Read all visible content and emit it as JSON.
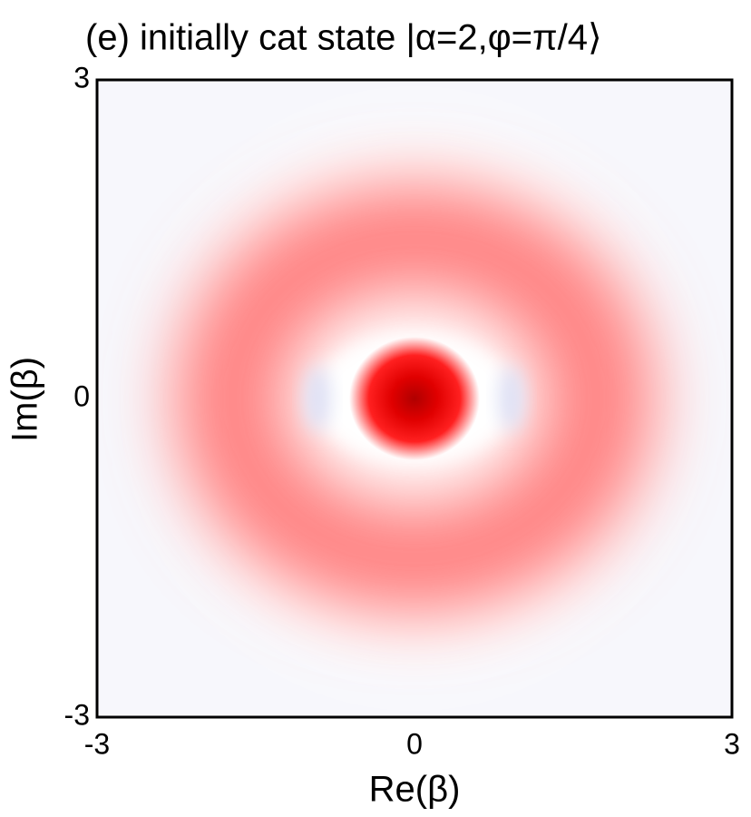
{
  "chart_data": {
    "type": "heatmap",
    "title": "(e)  initially cat state |α=2,φ=π/4⟩",
    "xlabel": "Re(β)",
    "ylabel": "Im(β)",
    "xlim": [
      -3,
      3
    ],
    "ylim": [
      -3,
      3
    ],
    "xticks": [
      -3,
      0,
      3
    ],
    "yticks": [
      -3,
      0,
      3
    ]
  }
}
